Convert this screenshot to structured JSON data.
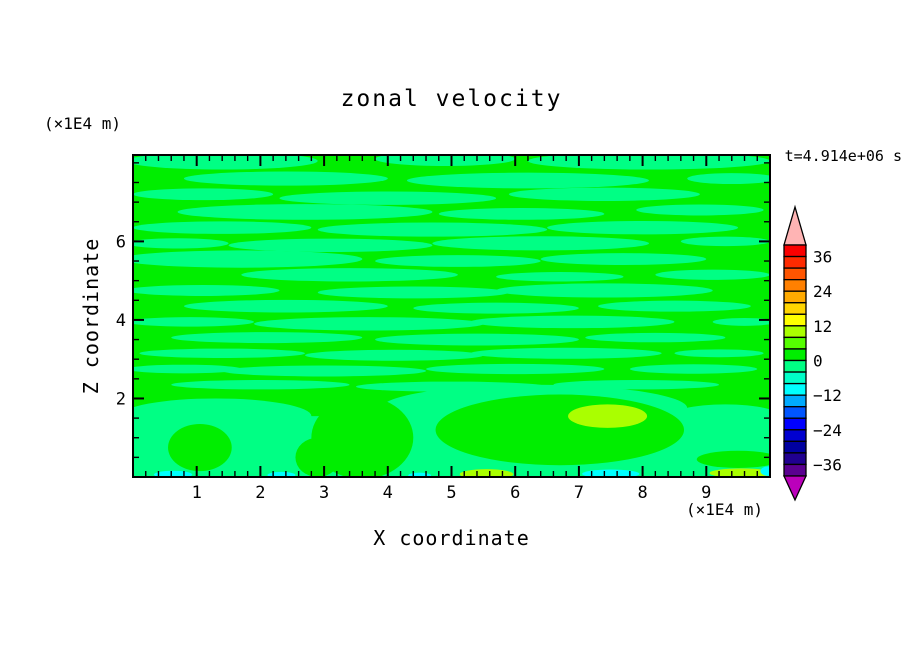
{
  "title": "zonal velocity",
  "annotations": {
    "time": "t=4.914e+06 s"
  },
  "axes": {
    "x": {
      "label": "X coordinate",
      "unit_label": "(×1E4 m)",
      "min": 0,
      "max": 10,
      "major_ticks": [
        1,
        2,
        3,
        4,
        5,
        6,
        7,
        8,
        9
      ],
      "minor_step": 0.2
    },
    "z": {
      "label": "Z coordinate",
      "unit_label": "(×1E4 m)",
      "min": 0,
      "max": 8.2,
      "major_ticks": [
        2,
        4,
        6
      ],
      "minor_step": 0.5
    }
  },
  "colorbar": {
    "max": 40,
    "min": -40,
    "box_step": 4,
    "labels": [
      {
        "value": 36,
        "label": "36"
      },
      {
        "value": 24,
        "label": "24"
      },
      {
        "value": 12,
        "label": "12"
      },
      {
        "value": 0,
        "label": "0"
      },
      {
        "value": -12,
        "label": "−12"
      },
      {
        "value": -24,
        "label": "−24"
      },
      {
        "value": -36,
        "label": "−36"
      }
    ],
    "colors_top_to_bottom": [
      "#fa0000",
      "#ff2a00",
      "#ff5500",
      "#ff8000",
      "#ffaa00",
      "#ffd500",
      "#ffff00",
      "#aaff00",
      "#55ff00",
      "#00ee00",
      "#00ff84",
      "#00ffc8",
      "#00ffff",
      "#00aaff",
      "#0055ff",
      "#0000ff",
      "#0000d0",
      "#0000a0",
      "#200090",
      "#5a0090"
    ],
    "over_color": "#ffb4b4",
    "under_color": "#bb00bb"
  },
  "chart_data": {
    "type": "heatmap",
    "title": "zonal velocity",
    "xlabel": "X coordinate (×1E4 m)",
    "ylabel": "Z coordinate (×1E4 m)",
    "time_annotation": "t=4.914e+06 s",
    "x_range": [
      0,
      10
    ],
    "z_range": [
      0,
      8.2
    ],
    "contour_interval": 4,
    "colorbar_range": [
      -40,
      40
    ],
    "description": "Zonal velocity field: mostly near zero; horizontal streaks alternating between the 0..4 band (green) and -4..0 band (spring green); below z≈2 broad -4..0 region with embedded 0..4 blobs, small 8..12 patches and thin -8..-4 patches along the bottom boundary.",
    "field_regions": [
      {
        "band": "0 to 4",
        "color": "#00ee00",
        "shapes": [
          {
            "type": "rect",
            "x": 0,
            "z": 0,
            "w": 10,
            "h": 8.2
          }
        ]
      },
      {
        "band": "-4 to 0",
        "color": "#00ff84",
        "shapes": [
          {
            "type": "rect",
            "x": 0,
            "z": 0,
            "w": 10,
            "h": 1.55
          },
          {
            "type": "ellipse",
            "x": 1.3,
            "z": 1.55,
            "rx": 1.5,
            "ry": 0.45
          },
          {
            "type": "ellipse",
            "x": 6.3,
            "z": 1.75,
            "rx": 2.4,
            "ry": 0.6
          },
          {
            "type": "ellipse",
            "x": 9.3,
            "z": 1.5,
            "rx": 0.9,
            "ry": 0.35
          },
          {
            "type": "ellipse",
            "x": 1.4,
            "z": 8.05,
            "rx": 1.5,
            "ry": 0.22
          },
          {
            "type": "ellipse",
            "x": 4.9,
            "z": 8.1,
            "rx": 1.1,
            "ry": 0.18
          },
          {
            "type": "ellipse",
            "x": 8.1,
            "z": 8.05,
            "rx": 1.9,
            "ry": 0.22
          },
          {
            "type": "ellipse",
            "x": 2.4,
            "z": 7.6,
            "rx": 1.6,
            "ry": 0.18
          },
          {
            "type": "ellipse",
            "x": 6.2,
            "z": 7.55,
            "rx": 1.9,
            "ry": 0.2
          },
          {
            "type": "ellipse",
            "x": 9.4,
            "z": 7.6,
            "rx": 0.7,
            "ry": 0.14
          },
          {
            "type": "ellipse",
            "x": 1.1,
            "z": 7.2,
            "rx": 1.1,
            "ry": 0.15
          },
          {
            "type": "ellipse",
            "x": 4.0,
            "z": 7.1,
            "rx": 1.7,
            "ry": 0.17
          },
          {
            "type": "ellipse",
            "x": 7.4,
            "z": 7.2,
            "rx": 1.5,
            "ry": 0.17
          },
          {
            "type": "ellipse",
            "x": 2.7,
            "z": 6.75,
            "rx": 2.0,
            "ry": 0.2
          },
          {
            "type": "ellipse",
            "x": 6.1,
            "z": 6.7,
            "rx": 1.3,
            "ry": 0.15
          },
          {
            "type": "ellipse",
            "x": 8.9,
            "z": 6.8,
            "rx": 1.0,
            "ry": 0.14
          },
          {
            "type": "ellipse",
            "x": 1.4,
            "z": 6.35,
            "rx": 1.4,
            "ry": 0.16
          },
          {
            "type": "ellipse",
            "x": 4.7,
            "z": 6.3,
            "rx": 1.8,
            "ry": 0.18
          },
          {
            "type": "ellipse",
            "x": 8.0,
            "z": 6.35,
            "rx": 1.5,
            "ry": 0.17
          },
          {
            "type": "ellipse",
            "x": 0.7,
            "z": 5.95,
            "rx": 0.8,
            "ry": 0.13
          },
          {
            "type": "ellipse",
            "x": 3.1,
            "z": 5.9,
            "rx": 1.6,
            "ry": 0.17
          },
          {
            "type": "ellipse",
            "x": 6.4,
            "z": 5.95,
            "rx": 1.7,
            "ry": 0.18
          },
          {
            "type": "ellipse",
            "x": 9.3,
            "z": 6.0,
            "rx": 0.7,
            "ry": 0.12
          },
          {
            "type": "ellipse",
            "x": 1.7,
            "z": 5.55,
            "rx": 1.9,
            "ry": 0.22
          },
          {
            "type": "ellipse",
            "x": 5.1,
            "z": 5.5,
            "rx": 1.3,
            "ry": 0.15
          },
          {
            "type": "ellipse",
            "x": 7.7,
            "z": 5.55,
            "rx": 1.3,
            "ry": 0.15
          },
          {
            "type": "ellipse",
            "x": 3.4,
            "z": 5.15,
            "rx": 1.7,
            "ry": 0.17
          },
          {
            "type": "ellipse",
            "x": 6.7,
            "z": 5.1,
            "rx": 1.0,
            "ry": 0.12
          },
          {
            "type": "ellipse",
            "x": 9.1,
            "z": 5.15,
            "rx": 0.9,
            "ry": 0.13
          },
          {
            "type": "ellipse",
            "x": 1.1,
            "z": 4.75,
            "rx": 1.2,
            "ry": 0.14
          },
          {
            "type": "ellipse",
            "x": 4.4,
            "z": 4.7,
            "rx": 1.5,
            "ry": 0.15
          },
          {
            "type": "ellipse",
            "x": 7.4,
            "z": 4.75,
            "rx": 1.7,
            "ry": 0.18
          },
          {
            "type": "ellipse",
            "x": 2.4,
            "z": 4.35,
            "rx": 1.6,
            "ry": 0.16
          },
          {
            "type": "ellipse",
            "x": 5.7,
            "z": 4.3,
            "rx": 1.3,
            "ry": 0.14
          },
          {
            "type": "ellipse",
            "x": 8.5,
            "z": 4.35,
            "rx": 1.2,
            "ry": 0.14
          },
          {
            "type": "ellipse",
            "x": 0.9,
            "z": 3.95,
            "rx": 1.0,
            "ry": 0.12
          },
          {
            "type": "ellipse",
            "x": 3.7,
            "z": 3.9,
            "rx": 1.8,
            "ry": 0.17
          },
          {
            "type": "ellipse",
            "x": 6.9,
            "z": 3.95,
            "rx": 1.6,
            "ry": 0.16
          },
          {
            "type": "ellipse",
            "x": 9.6,
            "z": 3.95,
            "rx": 0.5,
            "ry": 0.1
          },
          {
            "type": "ellipse",
            "x": 2.1,
            "z": 3.55,
            "rx": 1.5,
            "ry": 0.14
          },
          {
            "type": "ellipse",
            "x": 5.4,
            "z": 3.5,
            "rx": 1.6,
            "ry": 0.15
          },
          {
            "type": "ellipse",
            "x": 8.2,
            "z": 3.55,
            "rx": 1.1,
            "ry": 0.12
          },
          {
            "type": "ellipse",
            "x": 1.4,
            "z": 3.15,
            "rx": 1.3,
            "ry": 0.12
          },
          {
            "type": "ellipse",
            "x": 4.1,
            "z": 3.1,
            "rx": 1.4,
            "ry": 0.14
          },
          {
            "type": "ellipse",
            "x": 6.8,
            "z": 3.15,
            "rx": 1.5,
            "ry": 0.14
          },
          {
            "type": "ellipse",
            "x": 9.2,
            "z": 3.15,
            "rx": 0.7,
            "ry": 0.1
          },
          {
            "type": "ellipse",
            "x": 0.8,
            "z": 2.75,
            "rx": 0.9,
            "ry": 0.11
          },
          {
            "type": "ellipse",
            "x": 3.0,
            "z": 2.7,
            "rx": 1.6,
            "ry": 0.14
          },
          {
            "type": "ellipse",
            "x": 6.0,
            "z": 2.75,
            "rx": 1.4,
            "ry": 0.13
          },
          {
            "type": "ellipse",
            "x": 8.8,
            "z": 2.75,
            "rx": 1.0,
            "ry": 0.12
          },
          {
            "type": "ellipse",
            "x": 2.0,
            "z": 2.35,
            "rx": 1.4,
            "ry": 0.12
          },
          {
            "type": "ellipse",
            "x": 5.0,
            "z": 2.3,
            "rx": 1.5,
            "ry": 0.13
          },
          {
            "type": "ellipse",
            "x": 7.9,
            "z": 2.35,
            "rx": 1.3,
            "ry": 0.12
          }
        ]
      },
      {
        "band": "0 to 4",
        "color": "#00ee00",
        "shapes": [
          {
            "type": "ellipse",
            "x": 1.05,
            "z": 0.75,
            "rx": 0.5,
            "ry": 0.6
          },
          {
            "type": "ellipse",
            "x": 2.9,
            "z": 0.5,
            "rx": 0.35,
            "ry": 0.5
          },
          {
            "type": "ellipse",
            "x": 3.6,
            "z": 1.0,
            "rx": 0.8,
            "ry": 1.05
          },
          {
            "type": "ellipse",
            "x": 6.7,
            "z": 1.2,
            "rx": 1.95,
            "ry": 0.9
          },
          {
            "type": "ellipse",
            "x": 9.5,
            "z": 0.45,
            "rx": 0.65,
            "ry": 0.22
          }
        ]
      },
      {
        "band": "8 to 12",
        "color": "#aaff00",
        "shapes": [
          {
            "type": "ellipse",
            "x": 7.45,
            "z": 1.55,
            "rx": 0.62,
            "ry": 0.3
          },
          {
            "type": "ellipse",
            "x": 5.55,
            "z": 0.07,
            "rx": 0.42,
            "ry": 0.13
          },
          {
            "type": "ellipse",
            "x": 9.55,
            "z": 0.1,
            "rx": 0.5,
            "ry": 0.12
          }
        ]
      },
      {
        "band": "-8 to -4",
        "color": "#00ffff",
        "shapes": [
          {
            "type": "ellipse",
            "x": 0.63,
            "z": 0.06,
            "rx": 0.3,
            "ry": 0.1
          },
          {
            "type": "ellipse",
            "x": 2.33,
            "z": 0.05,
            "rx": 0.22,
            "ry": 0.08
          },
          {
            "type": "ellipse",
            "x": 4.5,
            "z": 0.04,
            "rx": 0.18,
            "ry": 0.07
          },
          {
            "type": "ellipse",
            "x": 7.5,
            "z": 0.08,
            "rx": 0.45,
            "ry": 0.11
          },
          {
            "type": "ellipse",
            "x": 9.97,
            "z": 0.15,
            "rx": 0.12,
            "ry": 0.12
          }
        ]
      }
    ]
  }
}
